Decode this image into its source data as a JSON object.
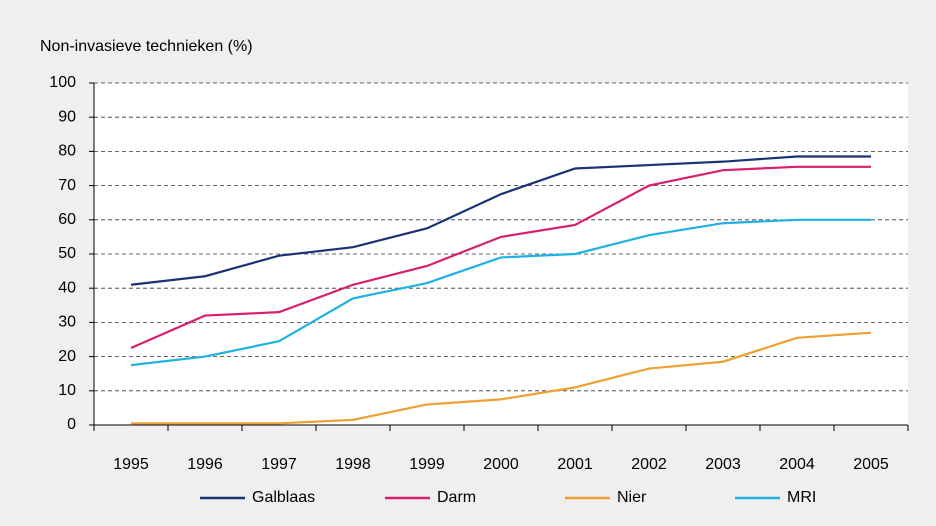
{
  "chart_data": {
    "type": "line",
    "title": "Non-invasieve technieken (%)",
    "categories": [
      "1995",
      "1996",
      "1997",
      "1998",
      "1999",
      "2000",
      "2001",
      "2002",
      "2003",
      "2004",
      "2005"
    ],
    "series": [
      {
        "name": "Galblaas",
        "color": "#1b3275",
        "values": [
          41,
          43.5,
          49.5,
          52,
          57.5,
          67.5,
          75,
          76,
          77,
          78.5,
          78.5
        ]
      },
      {
        "name": "Darm",
        "color": "#d81f6d",
        "values": [
          22.5,
          32,
          33,
          41,
          46.5,
          55,
          58.5,
          70,
          74.5,
          75.5,
          75.5
        ]
      },
      {
        "name": "Nier",
        "color": "#eea031",
        "values": [
          0.5,
          0.5,
          0.5,
          1.5,
          6,
          7.5,
          11,
          16.5,
          18.5,
          25.5,
          27
        ]
      },
      {
        "name": "MRI",
        "color": "#1eb1e1",
        "values": [
          17.5,
          20,
          24.5,
          37,
          41.5,
          49,
          50,
          55.5,
          59,
          60,
          60
        ]
      }
    ],
    "ylim": [
      0,
      100
    ],
    "yticks": [
      0,
      10,
      20,
      30,
      40,
      50,
      60,
      70,
      80,
      90,
      100
    ],
    "grid": true,
    "legend": "bottom"
  }
}
